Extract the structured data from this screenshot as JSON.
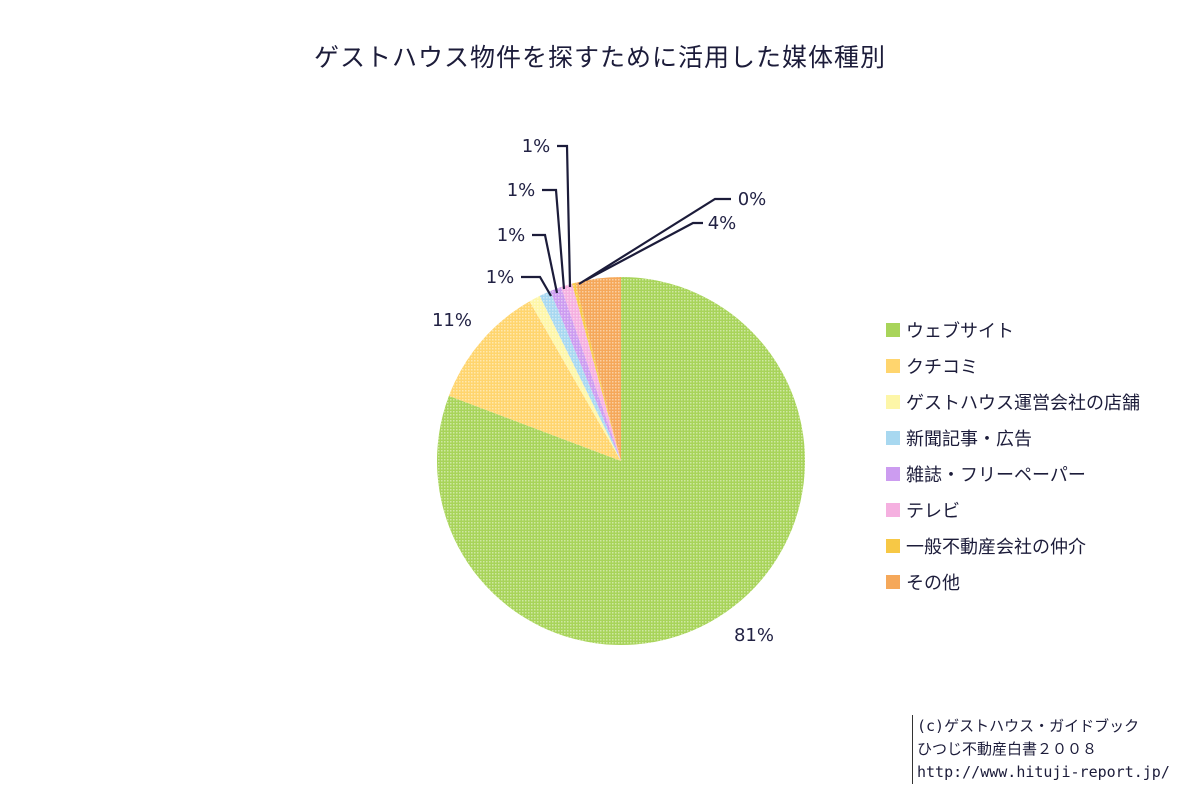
{
  "chart_data": {
    "type": "pie",
    "title": "ゲストハウス物件を探すために活用した媒体種別",
    "slices": [
      {
        "name": "ウェブサイト",
        "value": 81,
        "label": "81%",
        "color": "#a8d45a"
      },
      {
        "name": "クチコミ",
        "value": 11,
        "label": "11%",
        "color": "#ffd56e"
      },
      {
        "name": "ゲストハウス運営会社の店舗",
        "value": 1,
        "label": "1%",
        "color": "#fdf6a8"
      },
      {
        "name": "新聞記事・広告",
        "value": 1,
        "label": "1%",
        "color": "#a8d8f0"
      },
      {
        "name": "雑誌・フリーペーパー",
        "value": 1,
        "label": "1%",
        "color": "#cc9cf0"
      },
      {
        "name": "テレビ",
        "value": 1,
        "label": "1%",
        "color": "#f5b0e0"
      },
      {
        "name": "一般不動産会社の仲介",
        "value": 0.3,
        "label": "0%",
        "color": "#f7c845"
      },
      {
        "name": "その他",
        "value": 4,
        "label": "4%",
        "color": "#f5a85a"
      }
    ],
    "legend_position": "right"
  },
  "credit": {
    "line1": "(c)ゲストハウス・ガイドブック",
    "line2": "ひつじ不動産白書２００８",
    "line3": "http://www.hituji-report.jp/"
  }
}
